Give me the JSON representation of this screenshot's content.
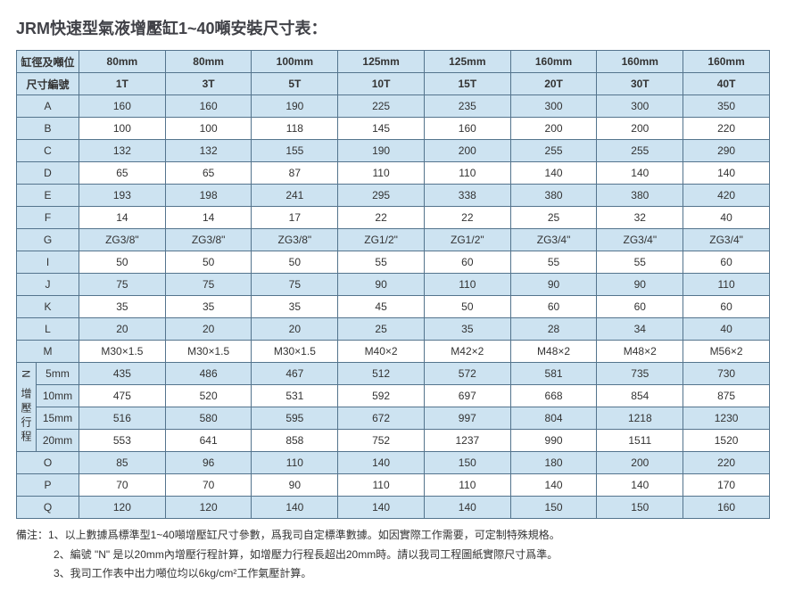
{
  "title": "JRM快速型氣液增壓缸1~40噸安裝尺寸表：",
  "header1": {
    "lbl": "缸徑及噸位",
    "cols": [
      "80mm",
      "80mm",
      "100mm",
      "125mm",
      "125mm",
      "160mm",
      "160mm",
      "160mm"
    ]
  },
  "header2": {
    "lbl": "尺寸編號",
    "cols": [
      "1T",
      "3T",
      "5T",
      "10T",
      "15T",
      "20T",
      "30T",
      "40T"
    ]
  },
  "rows": [
    {
      "k": "A",
      "v": [
        "160",
        "160",
        "190",
        "225",
        "235",
        "300",
        "300",
        "350"
      ]
    },
    {
      "k": "B",
      "v": [
        "100",
        "100",
        "118",
        "145",
        "160",
        "200",
        "200",
        "220"
      ]
    },
    {
      "k": "C",
      "v": [
        "132",
        "132",
        "155",
        "190",
        "200",
        "255",
        "255",
        "290"
      ]
    },
    {
      "k": "D",
      "v": [
        "65",
        "65",
        "87",
        "110",
        "110",
        "140",
        "140",
        "140"
      ]
    },
    {
      "k": "E",
      "v": [
        "193",
        "198",
        "241",
        "295",
        "338",
        "380",
        "380",
        "420"
      ]
    },
    {
      "k": "F",
      "v": [
        "14",
        "14",
        "17",
        "22",
        "22",
        "25",
        "32",
        "40"
      ]
    },
    {
      "k": "G",
      "v": [
        "ZG3/8\"",
        "ZG3/8\"",
        "ZG3/8\"",
        "ZG1/2\"",
        "ZG1/2\"",
        "ZG3/4\"",
        "ZG3/4\"",
        "ZG3/4\""
      ]
    },
    {
      "k": "I",
      "v": [
        "50",
        "50",
        "50",
        "55",
        "60",
        "55",
        "55",
        "60"
      ]
    },
    {
      "k": "J",
      "v": [
        "75",
        "75",
        "75",
        "90",
        "110",
        "90",
        "90",
        "110"
      ]
    },
    {
      "k": "K",
      "v": [
        "35",
        "35",
        "35",
        "45",
        "50",
        "60",
        "60",
        "60"
      ]
    },
    {
      "k": "L",
      "v": [
        "20",
        "20",
        "20",
        "25",
        "35",
        "28",
        "34",
        "40"
      ]
    },
    {
      "k": "M",
      "v": [
        "M30×1.5",
        "M30×1.5",
        "M30×1.5",
        "M40×2",
        "M42×2",
        "M48×2",
        "M48×2",
        "M56×2"
      ]
    }
  ],
  "N": {
    "title": "N 增壓行程",
    "sub": [
      {
        "k": "5mm",
        "v": [
          "435",
          "486",
          "467",
          "512",
          "572",
          "581",
          "735",
          "730"
        ]
      },
      {
        "k": "10mm",
        "v": [
          "475",
          "520",
          "531",
          "592",
          "697",
          "668",
          "854",
          "875"
        ]
      },
      {
        "k": "15mm",
        "v": [
          "516",
          "580",
          "595",
          "672",
          "997",
          "804",
          "1218",
          "1230"
        ]
      },
      {
        "k": "20mm",
        "v": [
          "553",
          "641",
          "858",
          "752",
          "1237",
          "990",
          "1511",
          "1520"
        ]
      }
    ]
  },
  "tail": [
    {
      "k": "O",
      "v": [
        "85",
        "96",
        "110",
        "140",
        "150",
        "180",
        "200",
        "220"
      ]
    },
    {
      "k": "P",
      "v": [
        "70",
        "70",
        "90",
        "110",
        "110",
        "140",
        "140",
        "170"
      ]
    },
    {
      "k": "Q",
      "v": [
        "120",
        "120",
        "140",
        "140",
        "140",
        "150",
        "150",
        "160"
      ]
    }
  ],
  "notes": {
    "l1": "備注：1、以上數據爲標準型1~40噸增壓缸尺寸參數，爲我司自定標準數據。如因實際工作需要，可定制特殊規格。",
    "l2": "2、編號 \"N\" 是以20mm內增壓行程計算，如增壓力行程長超出20mm時。請以我司工程圖紙實際尺寸爲準。",
    "l3": "3、我司工作表中出力噸位均以6kg/cm²工作氣壓計算。"
  },
  "colors": {
    "border": "#54748d",
    "hdr_bg": "#cde3f1",
    "text": "#333333",
    "title": "#404147",
    "bg": "#ffffff"
  }
}
